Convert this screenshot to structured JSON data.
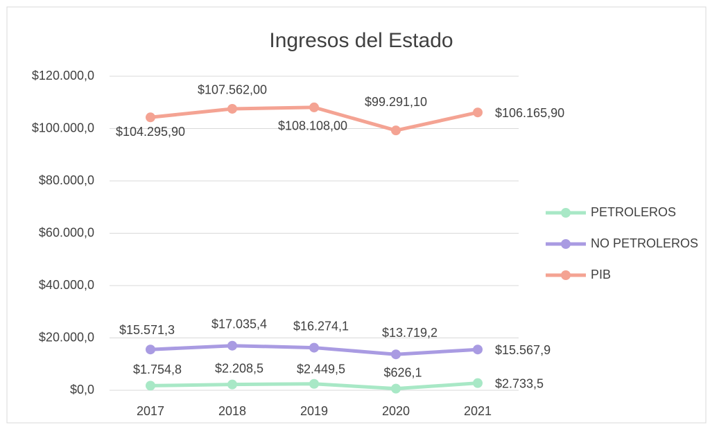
{
  "chart_data": {
    "type": "line",
    "title": "Ingresos del Estado",
    "categories": [
      "2017",
      "2018",
      "2019",
      "2020",
      "2021"
    ],
    "series": [
      {
        "name": "PETROLEROS",
        "color": "#a8e8c6",
        "values": [
          1754.8,
          2208.5,
          2449.5,
          626.1,
          2733.5
        ],
        "value_labels": [
          "$1.754,8",
          "$2.208,5",
          "$2.449,5",
          "$626,1",
          "$2.733,5"
        ]
      },
      {
        "name": "NO PETROLEROS",
        "color": "#a99be2",
        "values": [
          15571.3,
          17035.4,
          16274.1,
          13719.2,
          15567.9
        ],
        "value_labels": [
          "$15.571,3",
          "$17.035,4",
          "$16.274,1",
          "$13.719,2",
          "$15.567,9"
        ]
      },
      {
        "name": "PIB",
        "color": "#f4a393",
        "values": [
          104295.9,
          107562.0,
          108108.0,
          99291.1,
          106165.9
        ],
        "value_labels": [
          "$104.295,90",
          "$107.562,00",
          "$108.108,00",
          "$99.291,10",
          "$106.165,90"
        ]
      }
    ],
    "ylim": [
      0,
      120000
    ],
    "yticks": [
      {
        "value": 0,
        "label": "$0,0"
      },
      {
        "value": 20000,
        "label": "$20.000,0"
      },
      {
        "value": 40000,
        "label": "$40.000,0"
      },
      {
        "value": 60000,
        "label": "$60.000,0"
      },
      {
        "value": 80000,
        "label": "$80.000,0"
      },
      {
        "value": 100000,
        "label": "$100.000,0"
      },
      {
        "value": 120000,
        "label": "$120.000,0"
      }
    ],
    "grid": true,
    "legend": "right"
  }
}
